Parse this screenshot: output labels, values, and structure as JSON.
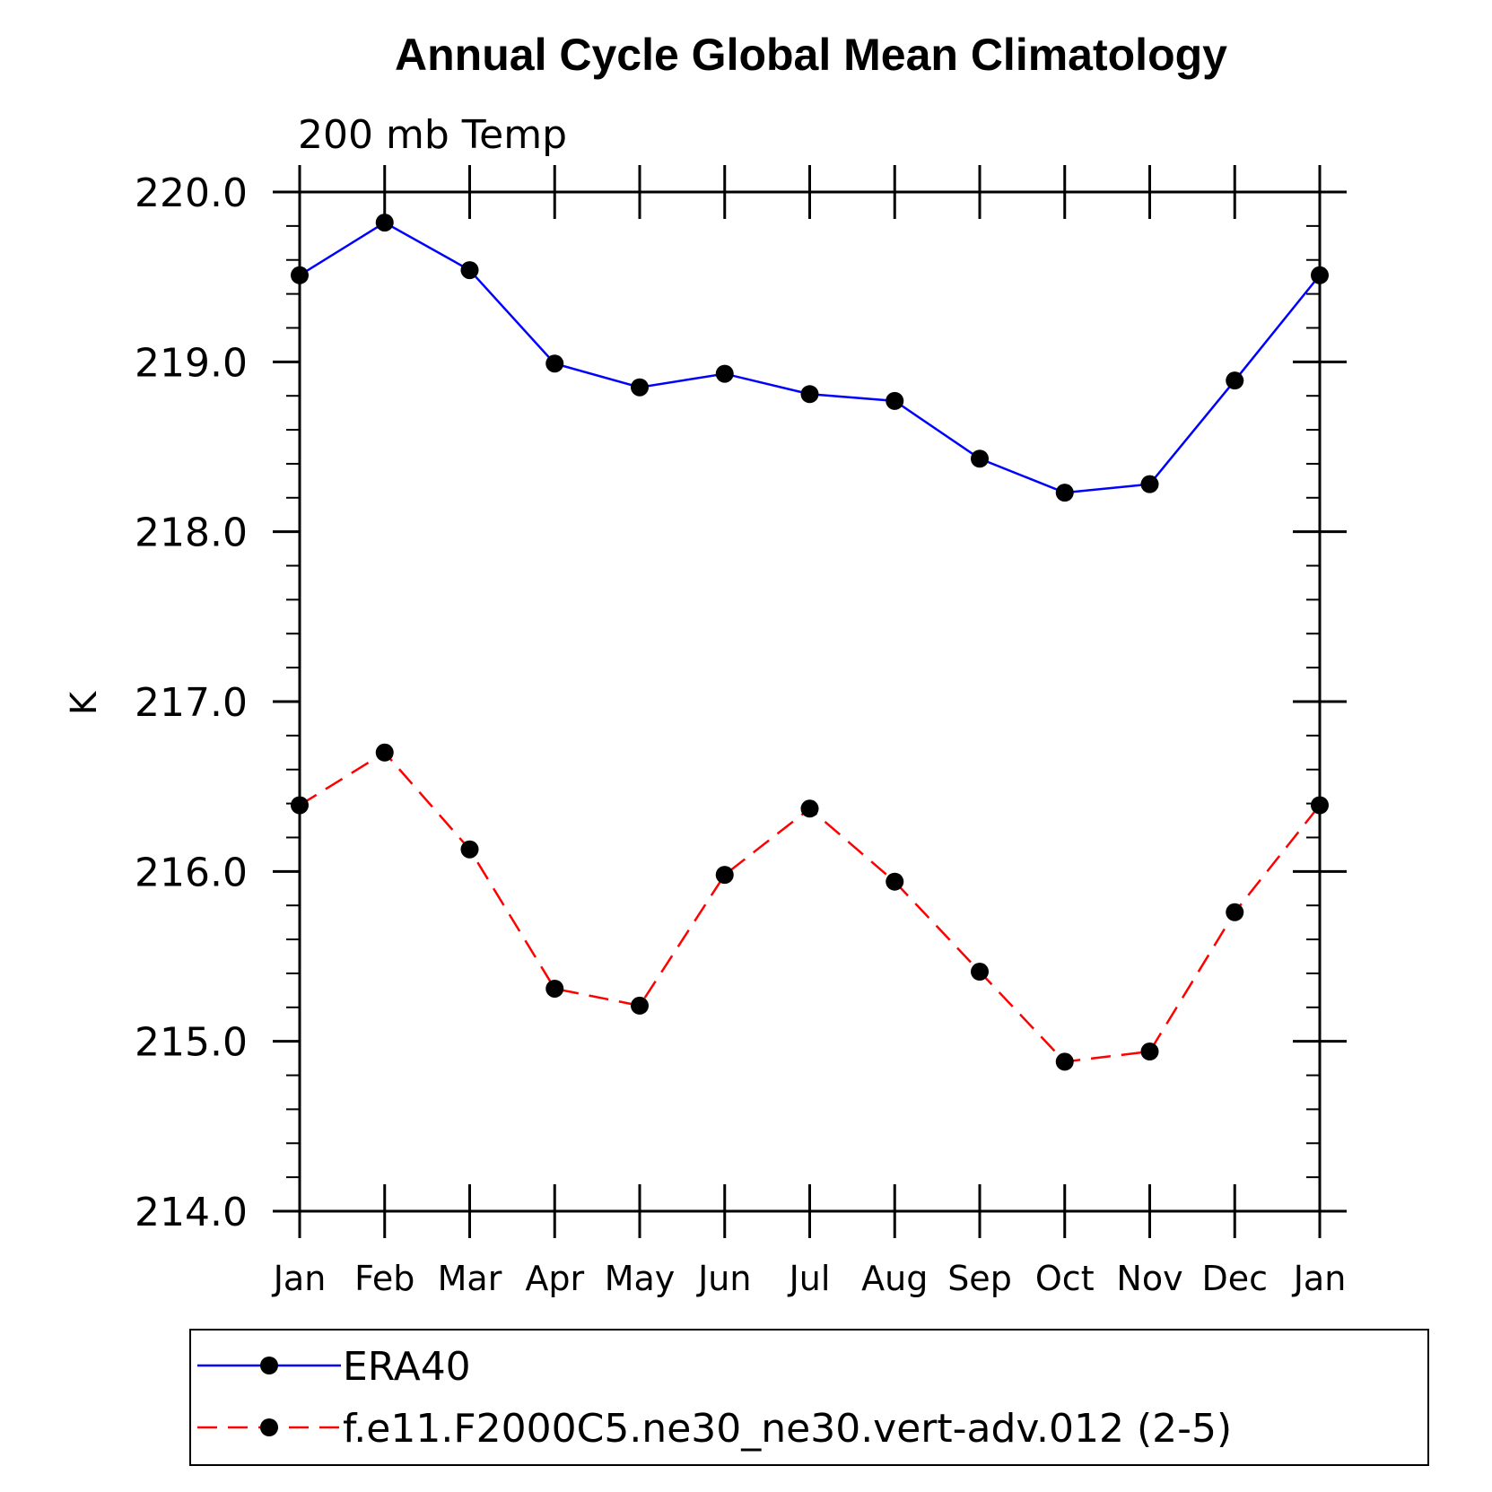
{
  "chart_data": {
    "type": "line",
    "title": "Annual Cycle Global Mean Climatology",
    "subtitle": "200 mb Temp",
    "xlabel": "",
    "ylabel": "K",
    "categories": [
      "Jan",
      "Feb",
      "Mar",
      "Apr",
      "May",
      "Jun",
      "Jul",
      "Aug",
      "Sep",
      "Oct",
      "Nov",
      "Dec",
      "Jan"
    ],
    "ylim": [
      214.0,
      220.0
    ],
    "yticks": [
      "214.0",
      "215.0",
      "216.0",
      "217.0",
      "218.0",
      "219.0",
      "220.0"
    ],
    "grid": false,
    "legend_position": "bottom",
    "series": [
      {
        "name": "ERA40",
        "color": "#0000ff",
        "line_style": "solid",
        "marker": "filled-circle",
        "values": [
          219.51,
          219.82,
          219.54,
          218.99,
          218.85,
          218.93,
          218.81,
          218.77,
          218.43,
          218.23,
          218.28,
          218.89,
          219.51
        ]
      },
      {
        "name": "f.e11.F2000C5.ne30_ne30.vert-adv.012 (2-5)",
        "color": "#ff0000",
        "line_style": "dashed",
        "marker": "filled-circle",
        "values": [
          216.39,
          216.7,
          216.13,
          215.31,
          215.21,
          215.98,
          216.37,
          215.94,
          215.41,
          214.88,
          214.94,
          215.76,
          216.39
        ]
      }
    ]
  }
}
